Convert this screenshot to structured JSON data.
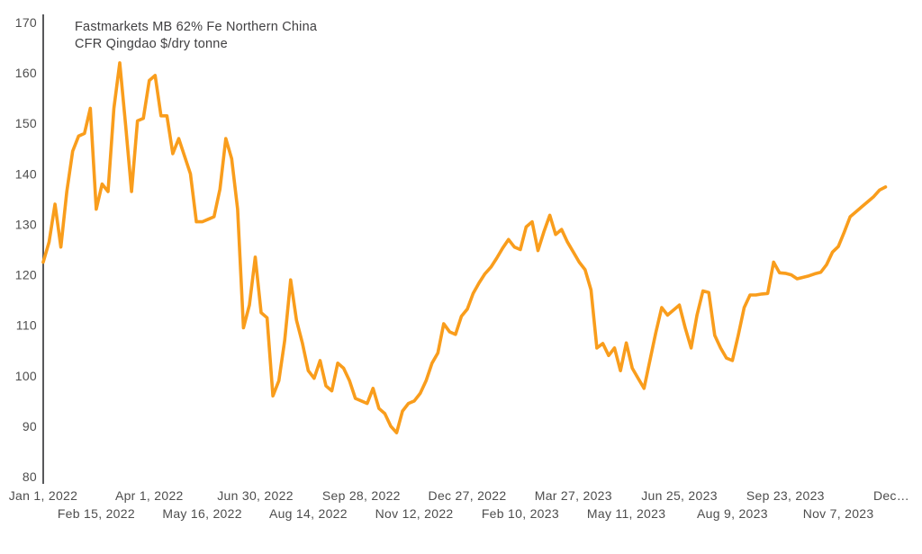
{
  "chart": {
    "annotation_line1": "Fastmarkets MB 62% Fe Northern China",
    "annotation_line2": "CFR Qingdao $/dry tonne"
  },
  "colors": {
    "line": "#F99D1C",
    "axis": "#58595B",
    "tick_label": "#4D4D4D",
    "annotation_text": "#414042",
    "background": "#FFFFFF"
  },
  "chart_data": {
    "type": "line",
    "title": "Fastmarkets MB 62% Fe Northern China CFR Qingdao $/dry tonne",
    "ylabel": "$/dry tonne",
    "ylim": [
      80,
      170
    ],
    "y_ticks": [
      170,
      160,
      150,
      140,
      130,
      120,
      110,
      100,
      90,
      80
    ],
    "grid": false,
    "legend_position": "none",
    "x_start_date": "Jan 1, 2022",
    "x_end_date": "Dec 16, 2023",
    "sample_interval_days": 5,
    "x_axis_ticks": [
      {
        "label": "Jan 1, 2022",
        "day": 0,
        "row": 1
      },
      {
        "label": "Feb 15, 2022",
        "day": 45,
        "row": 2
      },
      {
        "label": "Apr 1, 2022",
        "day": 90,
        "row": 1
      },
      {
        "label": "May 16, 2022",
        "day": 135,
        "row": 2
      },
      {
        "label": "Jun 30, 2022",
        "day": 180,
        "row": 1
      },
      {
        "label": "Aug 14, 2022",
        "day": 225,
        "row": 2
      },
      {
        "label": "Sep 28, 2022",
        "day": 270,
        "row": 1
      },
      {
        "label": "Nov 12, 2022",
        "day": 315,
        "row": 2
      },
      {
        "label": "Dec 27, 2022",
        "day": 360,
        "row": 1
      },
      {
        "label": "Feb 10, 2023",
        "day": 405,
        "row": 2
      },
      {
        "label": "Mar 27, 2023",
        "day": 450,
        "row": 1
      },
      {
        "label": "May 11, 2023",
        "day": 495,
        "row": 2
      },
      {
        "label": "Jun 25, 2023",
        "day": 540,
        "row": 1
      },
      {
        "label": "Aug 9, 2023",
        "day": 585,
        "row": 2
      },
      {
        "label": "Sep 23, 2023",
        "day": 630,
        "row": 1
      },
      {
        "label": "Nov 7, 2023",
        "day": 675,
        "row": 2
      },
      {
        "label": "Dec…",
        "day": 720,
        "row": 1
      }
    ],
    "series": [
      {
        "name": "Fastmarkets MB 62% Fe Northern China CFR Qingdao $/dry tonne",
        "color": "#F99D1C",
        "first_point_day_offset": 0,
        "values": [
          122.5,
          126.5,
          134,
          125.5,
          136.5,
          144.5,
          147.5,
          148,
          153,
          133,
          138,
          136.5,
          153,
          162,
          149.5,
          136.5,
          150.5,
          151,
          158.5,
          159.5,
          151.5,
          151.5,
          144,
          147,
          143.5,
          140,
          130.5,
          130.5,
          131,
          131.5,
          137,
          147,
          143,
          133,
          109.5,
          114,
          123.5,
          112.5,
          111.5,
          96,
          99,
          107,
          119,
          111,
          106.5,
          101,
          99.5,
          103,
          98,
          97,
          102.5,
          101.5,
          99,
          95.5,
          95,
          94.5,
          97.5,
          93.5,
          92.5,
          90,
          88.7,
          93,
          94.5,
          95,
          96.5,
          99,
          102.5,
          104.5,
          110.3,
          108.7,
          108.2,
          111.8,
          113.2,
          116.3,
          118.4,
          120.2,
          121.5,
          123.3,
          125.3,
          127,
          125.5,
          125,
          129.5,
          130.5,
          124.8,
          128.5,
          131.8,
          128,
          129,
          126.5,
          124.5,
          122.5,
          121,
          117,
          105.5,
          106.4,
          104,
          105.5,
          101,
          106.5,
          101.5,
          99.5,
          97.5,
          103,
          108.5,
          113.5,
          112,
          113,
          114,
          109.5,
          105.5,
          112,
          116.8,
          116.5,
          108,
          105.5,
          103.5,
          103,
          108,
          113.5,
          116,
          116,
          116.2,
          116.3,
          122.5,
          120.4,
          120.3,
          120,
          119.2,
          119.5,
          119.8,
          120.2,
          120.5,
          122,
          124.5,
          125.6,
          128.5,
          131.5,
          132.5,
          133.5,
          134.5,
          135.5,
          136.8,
          137.4
        ]
      }
    ]
  }
}
